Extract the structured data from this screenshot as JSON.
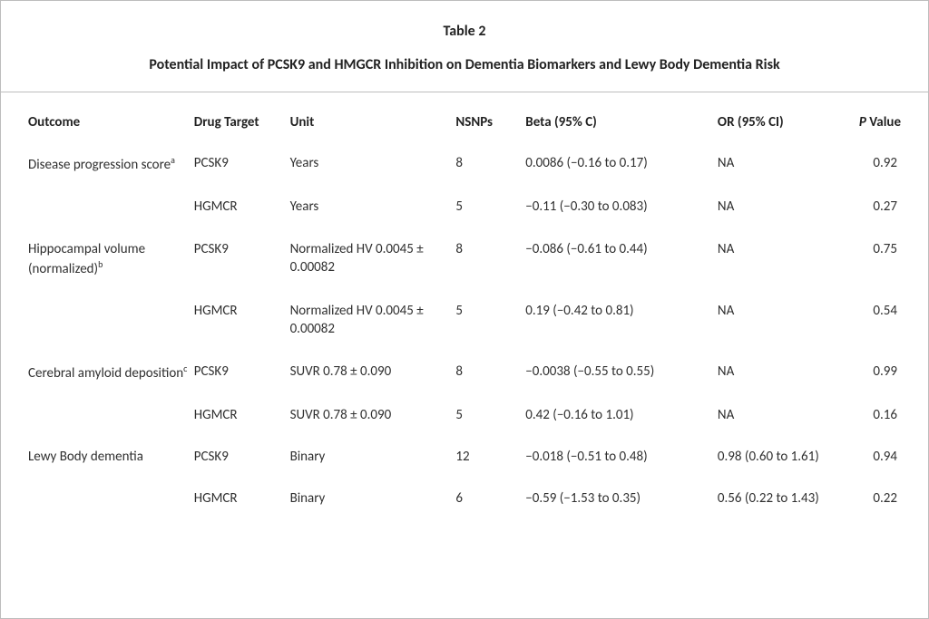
{
  "header": {
    "table_number": "Table 2",
    "title": "Potential Impact of PCSK9 and HMGCR Inhibition on Dementia Biomarkers and Lewy Body Dementia Risk"
  },
  "columns": {
    "outcome": "Outcome",
    "drug": "Drug Target",
    "unit": "Unit",
    "nsnps": "NSNPs",
    "beta": "Beta (95% C)",
    "or": "OR (95% CI)",
    "p_italic": "P",
    "p_rest": " Value"
  },
  "rows": [
    {
      "outcome": "Disease progression score",
      "outcome_sup": "a",
      "drug": "PCSK9",
      "unit": "Years",
      "nsnps": "8",
      "beta": "0.0086 (−0.16 to 0.17)",
      "or": "NA",
      "p": "0.92"
    },
    {
      "outcome": "",
      "outcome_sup": "",
      "drug": "HGMCR",
      "unit": "Years",
      "nsnps": "5",
      "beta": "−0.11 (−0.30 to 0.083)",
      "or": "NA",
      "p": "0.27"
    },
    {
      "outcome": "Hippocampal volume (normalized)",
      "outcome_sup": "b",
      "drug": "PCSK9",
      "unit": "Normalized HV 0.0045 ± 0.00082",
      "nsnps": "8",
      "beta": "−0.086 (−0.61 to 0.44)",
      "or": "NA",
      "p": "0.75"
    },
    {
      "outcome": "",
      "outcome_sup": "",
      "drug": "HGMCR",
      "unit": "Normalized HV  0.0045 ± 0.00082",
      "nsnps": "5",
      "beta": "0.19 (−0.42 to 0.81)",
      "or": "NA",
      "p": "0.54"
    },
    {
      "outcome": "Cerebral amyloid deposition",
      "outcome_sup": "c",
      "drug": "PCSK9",
      "unit": "SUVR 0.78 ± 0.090",
      "nsnps": "8",
      "beta": "−0.0038 (−0.55 to 0.55)",
      "or": " NA",
      "p": "0.99"
    },
    {
      "outcome": "",
      "outcome_sup": "",
      "drug": "HGMCR",
      "unit": "SUVR 0.78 ± 0.090",
      "nsnps": "5",
      "beta": "0.42 (−0.16 to 1.01)",
      "or": " NA",
      "p": "0.16"
    },
    {
      "outcome": "Lewy Body dementia",
      "outcome_sup": "",
      "drug": "PCSK9",
      "unit": "Binary",
      "nsnps": "12",
      "beta": "−0.018 (−0.51 to 0.48)",
      "or": "0.98 (0.60 to 1.61)",
      "p": "0.94"
    },
    {
      "outcome": "",
      "outcome_sup": "",
      "drug": "HGMCR",
      "unit": "Binary",
      "nsnps": "6",
      "beta": "−0.59 (−1.53 to 0.35)",
      "or": "0.56 (0.22 to 1.43)",
      "p": "0.22"
    }
  ],
  "styling": {
    "font_family": "Calibri",
    "header_fontsize_pt": 12,
    "cell_fontsize_pt": 11,
    "text_color": "#222222",
    "cell_text_color": "#303030",
    "border_color": "#bdbdbd",
    "background_color": "#ffffff",
    "column_widths_pct": {
      "outcome": 19,
      "drug": 11,
      "unit": 19,
      "nsnps": 8,
      "beta": 22,
      "or": 15,
      "p": 6
    }
  }
}
